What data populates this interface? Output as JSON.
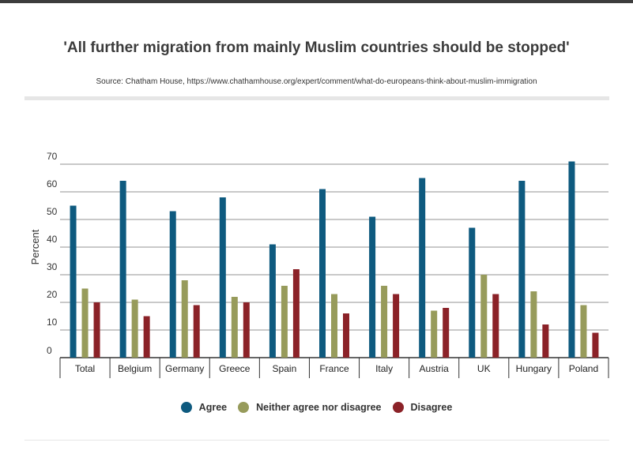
{
  "chart_data": {
    "type": "bar",
    "title": "'All further migration from mainly Muslim countries should be stopped'",
    "source": "Source: Chatham House, https://www.chathamhouse.org/expert/comment/what-do-europeans-think-about-muslim-immigration",
    "xlabel": "",
    "ylabel": "Percent",
    "ylim": [
      0,
      70
    ],
    "yticks": [
      0,
      10,
      20,
      30,
      40,
      50,
      60,
      70
    ],
    "grid": true,
    "legend_position": "bottom",
    "categories": [
      "Total",
      "Belgium",
      "Germany",
      "Greece",
      "Spain",
      "France",
      "Italy",
      "Austria",
      "UK",
      "Hungary",
      "Poland"
    ],
    "series": [
      {
        "name": "Agree",
        "color": "#0e5a7f",
        "values": [
          55,
          64,
          53,
          58,
          41,
          61,
          51,
          65,
          47,
          64,
          71
        ]
      },
      {
        "name": "Neither agree nor disagree",
        "color": "#979b5b",
        "values": [
          25,
          21,
          28,
          22,
          26,
          23,
          26,
          17,
          30,
          24,
          19
        ]
      },
      {
        "name": "Disagree",
        "color": "#8b2228",
        "values": [
          20,
          15,
          19,
          20,
          32,
          16,
          23,
          18,
          23,
          12,
          9
        ]
      }
    ]
  }
}
